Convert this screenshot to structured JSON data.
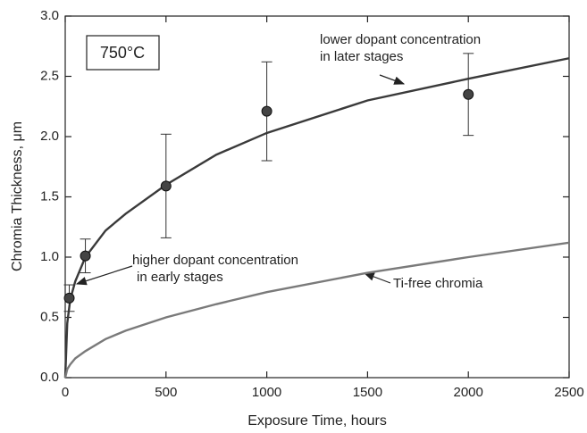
{
  "chart_data": {
    "type": "scatter",
    "x_label": "Exposure Time, hours",
    "y_label": "Chromia Thickness, μm",
    "xlim": [
      0,
      2500
    ],
    "xticks": [
      0,
      500,
      1000,
      1500,
      2000,
      2500
    ],
    "ylim": [
      0,
      3
    ],
    "yticks": [
      {
        "value": 0,
        "label": "0.0"
      },
      0.5,
      {
        "value": 1,
        "label": "1.0"
      },
      1.5,
      {
        "value": 2,
        "label": "2.0"
      },
      2.5,
      {
        "value": 3,
        "label": "3.0"
      }
    ],
    "box_label": "750°C",
    "series": [
      {
        "type": "line",
        "color": "#3a3a3a",
        "x": [
          0,
          10,
          25,
          50,
          100,
          200,
          300,
          500,
          750,
          1000,
          1500,
          2000,
          2500
        ],
        "values": [
          0,
          0.45,
          0.65,
          0.8,
          1.0,
          1.22,
          1.36,
          1.6,
          1.85,
          2.03,
          2.3,
          2.48,
          2.65
        ]
      },
      {
        "type": "line",
        "color": "#7a7a7a",
        "x": [
          0,
          10,
          25,
          50,
          100,
          200,
          300,
          500,
          750,
          1000,
          1500,
          2000,
          2500
        ],
        "values": [
          0,
          0.07,
          0.11,
          0.16,
          0.22,
          0.32,
          0.39,
          0.5,
          0.61,
          0.71,
          0.87,
          1.0,
          1.12
        ]
      },
      {
        "type": "scatter",
        "color": "#444444",
        "x": [
          20,
          100,
          500,
          1000,
          2000
        ],
        "values": [
          0.66,
          1.01,
          1.59,
          2.21,
          2.35
        ],
        "errors": [
          0.11,
          0.14,
          0.43,
          0.41,
          0.34
        ]
      }
    ],
    "annotations": [
      {
        "text": [
          "lower dopant concentration",
          "in later stages"
        ]
      },
      {
        "text": [
          "higher dopant concentration",
          "in early stages"
        ]
      },
      {
        "text": [
          "Ti-free chromia"
        ]
      }
    ]
  }
}
